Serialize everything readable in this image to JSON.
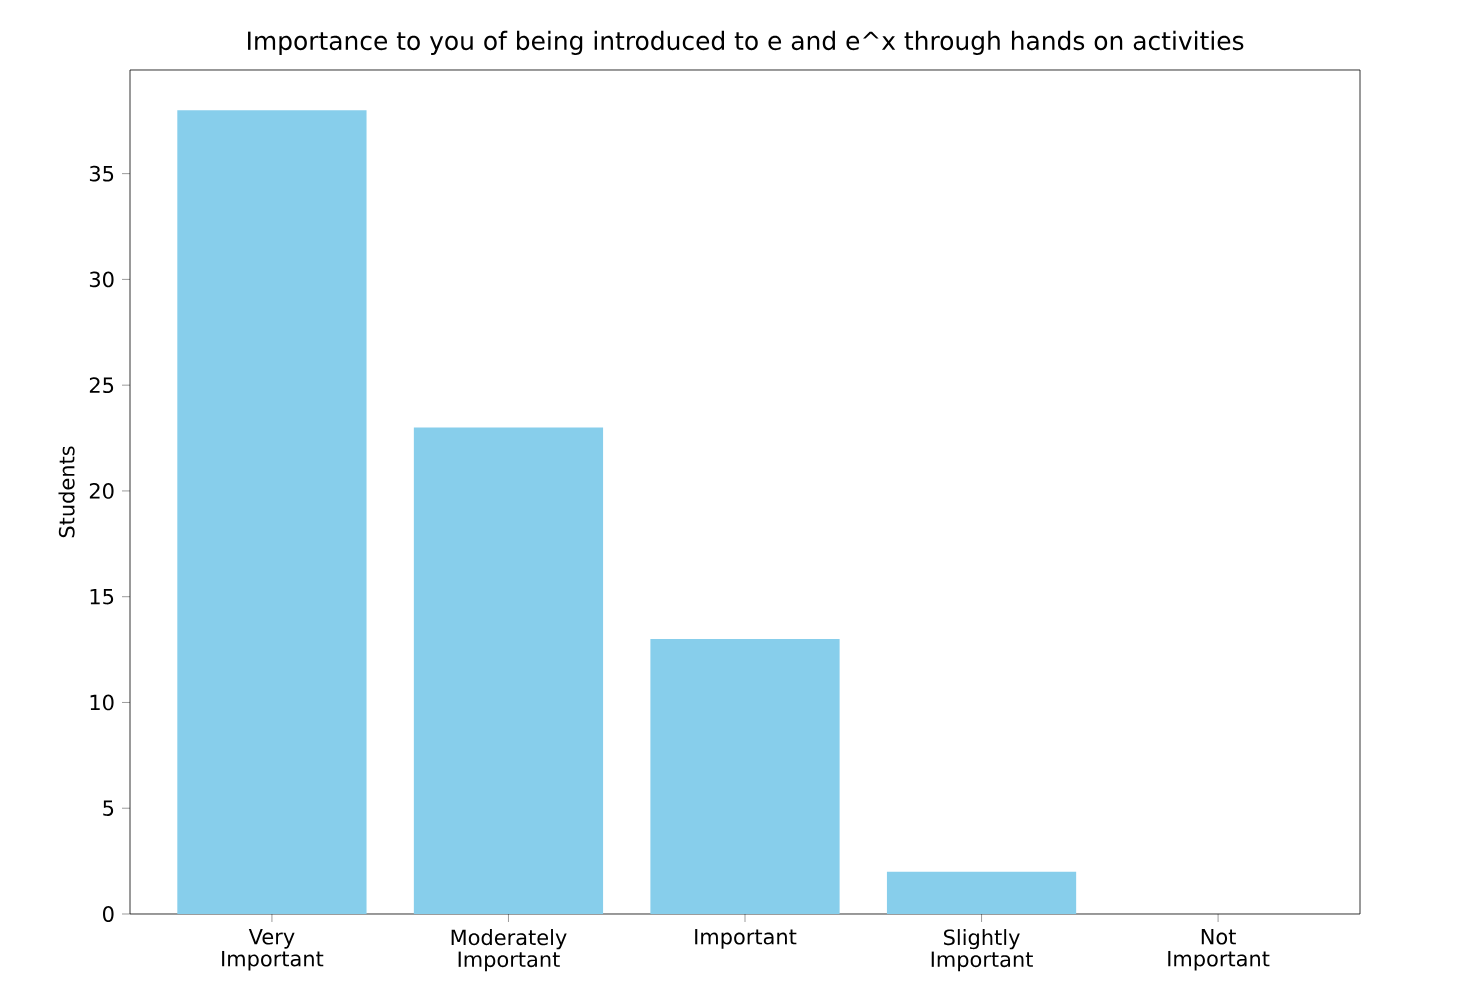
{
  "chart_data": {
    "type": "bar",
    "title": "Importance to you of being introduced to e and e^x through hands on activities",
    "ylabel": "Students",
    "categories": [
      "Very Important",
      "Moderately Important",
      "Important",
      "Slightly Important",
      "Not Important"
    ],
    "values": [
      38,
      23,
      13,
      2,
      0
    ],
    "color": "#87ceeb",
    "ylim": [
      0,
      39.9
    ],
    "yticks": [
      0,
      5,
      10,
      15,
      20,
      25,
      30,
      35
    ],
    "grid": false
  }
}
